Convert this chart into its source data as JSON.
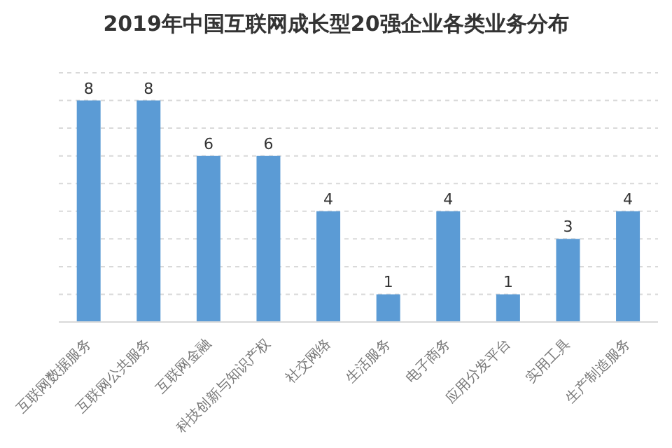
{
  "chart_data": {
    "type": "bar",
    "title": "2019年中国互联网成长型20强企业各类业务分布",
    "categories": [
      "互联网数据服务",
      "互联网公共服务",
      "互联网金融",
      "科技创新与知识产权",
      "社交网络",
      "生活服务",
      "电子商务",
      "应用分发平台",
      "实用工具",
      "生产制造服务"
    ],
    "values": [
      8,
      8,
      6,
      6,
      4,
      1,
      4,
      1,
      3,
      4
    ],
    "color": "#5b9bd5",
    "data_labels": true,
    "ylim": [
      0,
      9
    ],
    "yticks": [
      {
        "value": 0,
        "label": null
      },
      {
        "value": 1,
        "label": null
      },
      {
        "value": 2,
        "label": null
      },
      {
        "value": 3,
        "label": null
      },
      {
        "value": 4,
        "label": null
      },
      {
        "value": 5,
        "label": null
      },
      {
        "value": 6,
        "label": null
      },
      {
        "value": 7,
        "label": null
      },
      {
        "value": 8,
        "label": null
      },
      {
        "value": 9,
        "label": null
      }
    ],
    "grid": "y",
    "tick_labels": "x"
  }
}
